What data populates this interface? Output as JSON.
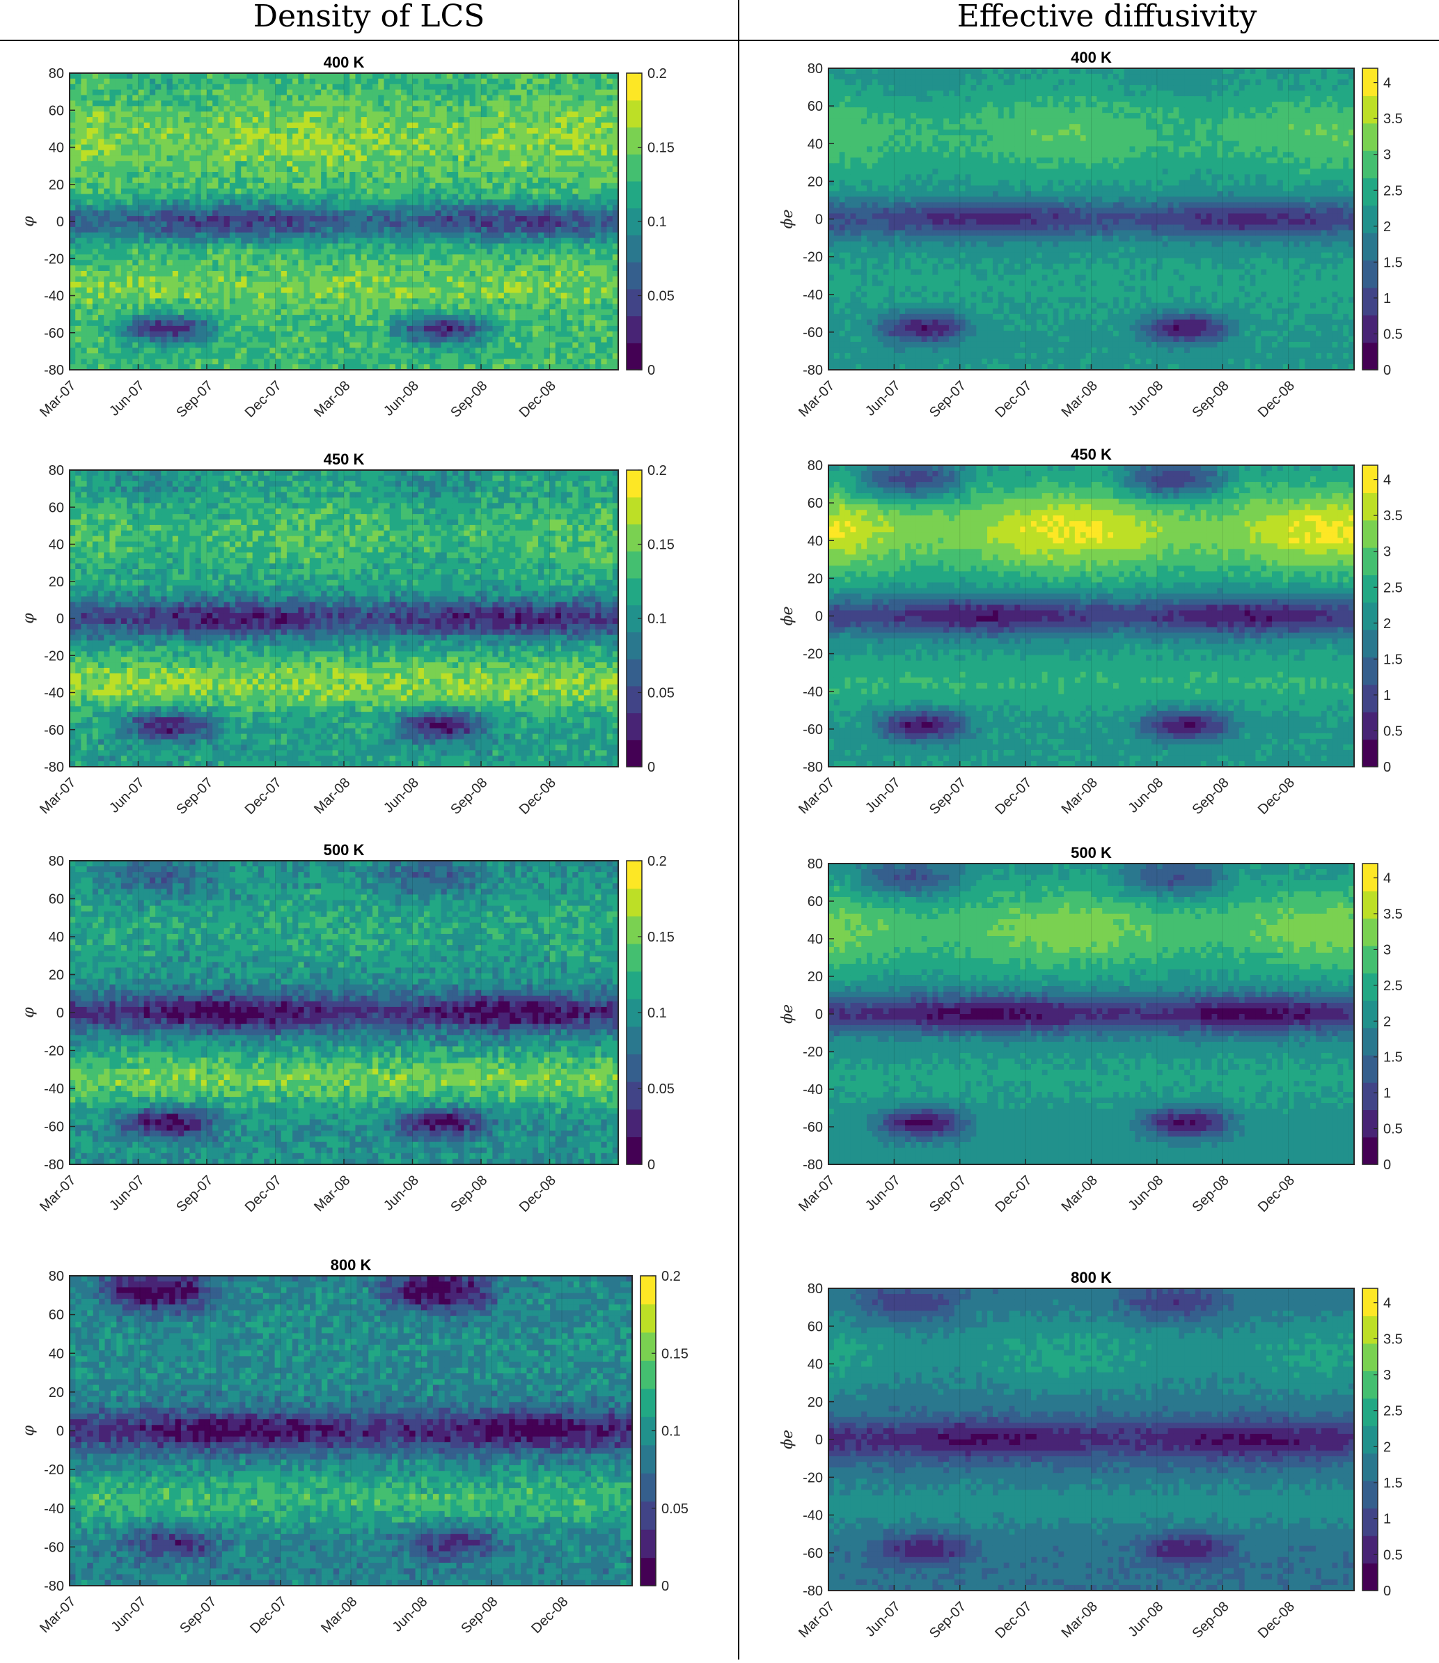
{
  "headers": {
    "left": "Density of LCS",
    "right": "Effective diffusivity"
  },
  "colormap": [
    "#440154",
    "#482475",
    "#414487",
    "#355f8d",
    "#2a788e",
    "#21918c",
    "#22a884",
    "#44bf70",
    "#7ad151",
    "#bddf26",
    "#fde725"
  ],
  "chart_data": [
    {
      "type": "heatmap",
      "title": "400 K",
      "ylabel": "φ",
      "x": [
        "Mar-07",
        "Jun-07",
        "Sep-07",
        "Dec-07",
        "Mar-08",
        "Jun-08",
        "Sep-08",
        "Dec-08"
      ],
      "ylim": [
        -80,
        80
      ],
      "yticks": [
        -80,
        -60,
        -40,
        -20,
        0,
        20,
        40,
        60,
        80
      ],
      "clim": [
        0,
        0.2
      ],
      "cticks": [
        "0",
        "0.05",
        "0.1",
        "0.15",
        "0.2"
      ],
      "colorbar_max": 0.2,
      "features": {
        "base": 0.13,
        "north": 0.16,
        "equator": 0.04,
        "south_mid": 0.15,
        "polar_south": 0.03,
        "arctic": 0.15,
        "noise": 0.02
      }
    },
    {
      "type": "heatmap",
      "title": "400 K",
      "ylabel": "ϕe",
      "x": [
        "Mar-07",
        "Jun-07",
        "Sep-07",
        "Dec-07",
        "Mar-08",
        "Jun-08",
        "Sep-08",
        "Dec-08"
      ],
      "ylim": [
        -80,
        80
      ],
      "yticks": [
        -80,
        -60,
        -40,
        -20,
        0,
        20,
        40,
        60,
        80
      ],
      "clim": [
        0,
        4.2
      ],
      "cticks": [
        "0",
        "0.5",
        "1",
        "1.5",
        "2",
        "2.5",
        "3",
        "3.5",
        "4"
      ],
      "colorbar_max": 4.2,
      "features": {
        "base": 2.2,
        "north": 3.0,
        "equator": 0.6,
        "south_mid": 2.4,
        "polar_south": 0.4,
        "arctic": 2.8,
        "noise": 0.15
      }
    },
    {
      "type": "heatmap",
      "title": "450 K",
      "ylabel": "φ",
      "x": [
        "Mar-07",
        "Jun-07",
        "Sep-07",
        "Dec-07",
        "Mar-08",
        "Jun-08",
        "Sep-08",
        "Dec-08"
      ],
      "ylim": [
        -80,
        80
      ],
      "yticks": [
        -80,
        -60,
        -40,
        -20,
        0,
        20,
        40,
        60,
        80
      ],
      "clim": [
        0,
        0.2
      ],
      "cticks": [
        "0",
        "0.05",
        "0.1",
        "0.15",
        "0.2"
      ],
      "colorbar_max": 0.2,
      "features": {
        "base": 0.11,
        "north": 0.14,
        "equator": 0.02,
        "south_mid": 0.16,
        "polar_south": 0.02,
        "arctic": 0.12,
        "noise": 0.02
      }
    },
    {
      "type": "heatmap",
      "title": "450 K",
      "ylabel": "ϕe",
      "x": [
        "Mar-07",
        "Jun-07",
        "Sep-07",
        "Dec-07",
        "Mar-08",
        "Jun-08",
        "Sep-08",
        "Dec-08"
      ],
      "ylim": [
        -80,
        80
      ],
      "yticks": [
        -80,
        -60,
        -40,
        -20,
        0,
        20,
        40,
        60,
        80
      ],
      "clim": [
        0,
        4.2
      ],
      "cticks": [
        "0",
        "0.5",
        "1",
        "1.5",
        "2",
        "2.5",
        "3",
        "3.5",
        "4"
      ],
      "colorbar_max": 4.2,
      "features": {
        "base": 2.2,
        "north": 3.9,
        "equator": 0.4,
        "south_mid": 2.6,
        "polar_south": 0.3,
        "arctic": 2.4,
        "noise": 0.15
      }
    },
    {
      "type": "heatmap",
      "title": "500 K",
      "ylabel": "φ",
      "x": [
        "Mar-07",
        "Jun-07",
        "Sep-07",
        "Dec-07",
        "Mar-08",
        "Jun-08",
        "Sep-08",
        "Dec-08"
      ],
      "ylim": [
        -80,
        80
      ],
      "yticks": [
        -80,
        -60,
        -40,
        -20,
        0,
        20,
        40,
        60,
        80
      ],
      "clim": [
        0,
        0.2
      ],
      "cticks": [
        "0",
        "0.05",
        "0.1",
        "0.15",
        "0.2"
      ],
      "colorbar_max": 0.2,
      "features": {
        "base": 0.1,
        "north": 0.12,
        "equator": 0.01,
        "south_mid": 0.15,
        "polar_south": 0.01,
        "arctic": 0.08,
        "noise": 0.02
      }
    },
    {
      "type": "heatmap",
      "title": "500 K",
      "ylabel": "ϕe",
      "x": [
        "Mar-07",
        "Jun-07",
        "Sep-07",
        "Dec-07",
        "Mar-08",
        "Jun-08",
        "Sep-08",
        "Dec-08"
      ],
      "ylim": [
        -80,
        80
      ],
      "yticks": [
        -80,
        -60,
        -40,
        -20,
        0,
        20,
        40,
        60,
        80
      ],
      "clim": [
        0,
        4.2
      ],
      "cticks": [
        "0",
        "0.5",
        "1",
        "1.5",
        "2",
        "2.5",
        "3",
        "3.5",
        "4"
      ],
      "colorbar_max": 4.2,
      "features": {
        "base": 2.1,
        "north": 3.3,
        "equator": 0.2,
        "south_mid": 2.4,
        "polar_south": 0.3,
        "arctic": 2.2,
        "noise": 0.15
      }
    },
    {
      "type": "heatmap",
      "title": "800 K",
      "ylabel": "φ",
      "x": [
        "Mar-07",
        "Jun-07",
        "Sep-07",
        "Dec-07",
        "Mar-08",
        "Jun-08",
        "Sep-08",
        "Dec-08"
      ],
      "ylim": [
        -80,
        80
      ],
      "yticks": [
        -80,
        -60,
        -40,
        -20,
        0,
        20,
        40,
        60,
        80
      ],
      "clim": [
        0,
        0.2
      ],
      "cticks": [
        "0",
        "0.05",
        "0.1",
        "0.15",
        "0.2"
      ],
      "colorbar_max": 0.2,
      "features": {
        "base": 0.09,
        "north": 0.1,
        "equator": 0.01,
        "south_mid": 0.13,
        "polar_south": 0.03,
        "arctic": 0.01,
        "noise": 0.02
      }
    },
    {
      "type": "heatmap",
      "title": "800 K",
      "ylabel": "ϕe",
      "x": [
        "Mar-07",
        "Jun-07",
        "Sep-07",
        "Dec-07",
        "Mar-08",
        "Jun-08",
        "Sep-08",
        "Dec-08"
      ],
      "ylim": [
        -80,
        80
      ],
      "yticks": [
        -80,
        -60,
        -40,
        -20,
        0,
        20,
        40,
        60,
        80
      ],
      "clim": [
        0,
        4.2
      ],
      "cticks": [
        "0",
        "0.5",
        "1",
        "1.5",
        "2",
        "2.5",
        "3",
        "3.5",
        "4"
      ],
      "colorbar_max": 4.2,
      "features": {
        "base": 1.6,
        "north": 2.4,
        "equator": 0.3,
        "south_mid": 2.1,
        "polar_south": 0.4,
        "arctic": 1.6,
        "noise": 0.15
      }
    }
  ]
}
